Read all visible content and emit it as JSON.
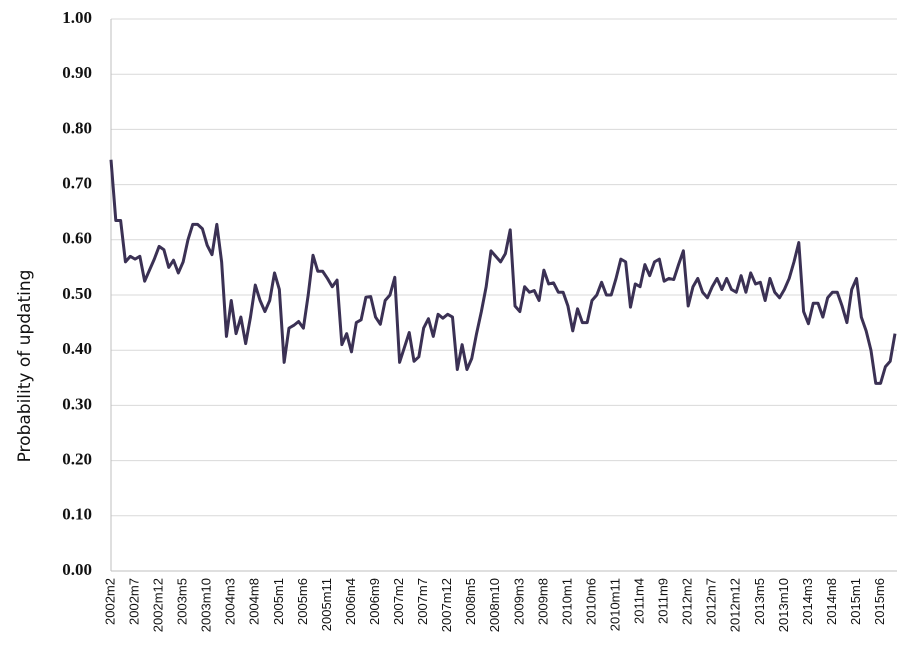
{
  "chart_data": {
    "type": "line",
    "y_label": "Probability of updating",
    "categories": [
      "2002m2",
      null,
      null,
      null,
      null,
      "2002m7",
      null,
      null,
      null,
      null,
      "2002m12",
      null,
      null,
      null,
      null,
      "2003m5",
      null,
      null,
      null,
      null,
      "2003m10",
      null,
      null,
      null,
      null,
      "2004m3",
      null,
      null,
      null,
      null,
      "2004m8",
      null,
      null,
      null,
      null,
      "2005m1",
      null,
      null,
      null,
      null,
      "2005m6",
      null,
      null,
      null,
      null,
      "2005m11",
      null,
      null,
      null,
      null,
      "2006m4",
      null,
      null,
      null,
      null,
      "2006m9",
      null,
      null,
      null,
      null,
      "2007m2",
      null,
      null,
      null,
      null,
      "2007m7",
      null,
      null,
      null,
      null,
      "2007m12",
      null,
      null,
      null,
      null,
      "2008m5",
      null,
      null,
      null,
      null,
      "2008m10",
      null,
      null,
      null,
      null,
      "2009m3",
      null,
      null,
      null,
      null,
      "2009m8",
      null,
      null,
      null,
      null,
      "2010m1",
      null,
      null,
      null,
      null,
      "2010m6",
      null,
      null,
      null,
      null,
      "2010m11",
      null,
      null,
      null,
      null,
      "2011m4",
      null,
      null,
      null,
      null,
      "2011m9",
      null,
      null,
      null,
      null,
      "2012m2",
      null,
      null,
      null,
      null,
      "2012m7",
      null,
      null,
      null,
      null,
      "2012m12",
      null,
      null,
      null,
      null,
      "2013m5",
      null,
      null,
      null,
      null,
      "2013m10",
      null,
      null,
      null,
      null,
      "2014m3",
      null,
      null,
      null,
      null,
      "2014m8",
      null,
      null,
      null,
      null,
      "2015m1",
      null,
      null,
      null,
      null,
      "2015m6",
      null,
      null,
      null
    ],
    "series": [
      {
        "color": "#3b3154",
        "values": [
          0.745,
          0.635,
          0.635,
          0.56,
          0.57,
          0.565,
          0.57,
          0.525,
          0.545,
          0.565,
          0.588,
          0.582,
          0.55,
          0.563,
          0.54,
          0.56,
          0.6,
          0.628,
          0.628,
          0.62,
          0.59,
          0.573,
          0.628,
          0.56,
          0.425,
          0.49,
          0.43,
          0.46,
          0.412,
          0.46,
          0.518,
          0.49,
          0.47,
          0.49,
          0.54,
          0.51,
          0.378,
          0.44,
          0.445,
          0.452,
          0.44,
          0.5,
          0.572,
          0.543,
          0.543,
          0.53,
          0.515,
          0.527,
          0.41,
          0.43,
          0.397,
          0.45,
          0.455,
          0.496,
          0.497,
          0.46,
          0.447,
          0.49,
          0.5,
          0.532,
          0.378,
          0.405,
          0.432,
          0.38,
          0.388,
          0.44,
          0.457,
          0.425,
          0.465,
          0.458,
          0.465,
          0.46,
          0.365,
          0.41,
          0.365,
          0.385,
          0.43,
          0.47,
          0.515,
          0.58,
          0.57,
          0.56,
          0.575,
          0.618,
          0.48,
          0.47,
          0.515,
          0.505,
          0.508,
          0.49,
          0.545,
          0.52,
          0.522,
          0.505,
          0.505,
          0.48,
          0.435,
          0.475,
          0.45,
          0.45,
          0.49,
          0.5,
          0.523,
          0.5,
          0.5,
          0.53,
          0.565,
          0.56,
          0.478,
          0.52,
          0.515,
          0.555,
          0.535,
          0.56,
          0.565,
          0.525,
          0.53,
          0.528,
          0.555,
          0.58,
          0.48,
          0.515,
          0.53,
          0.505,
          0.495,
          0.515,
          0.53,
          0.51,
          0.53,
          0.51,
          0.505,
          0.535,
          0.505,
          0.54,
          0.52,
          0.523,
          0.49,
          0.53,
          0.505,
          0.495,
          0.51,
          0.53,
          0.56,
          0.595,
          0.47,
          0.448,
          0.485,
          0.485,
          0.46,
          0.495,
          0.505,
          0.505,
          0.48,
          0.45,
          0.51,
          0.53,
          0.46,
          0.435,
          0.4,
          0.34,
          0.34,
          0.37,
          0.38,
          0.43
        ]
      }
    ],
    "ylim": [
      0,
      1
    ],
    "yticks": [
      {
        "value": 0,
        "label": "0.00"
      },
      {
        "value": 0.1,
        "label": "0.10"
      },
      {
        "value": 0.2,
        "label": "0.20"
      },
      {
        "value": 0.3,
        "label": "0.30"
      },
      {
        "value": 0.4,
        "label": "0.40"
      },
      {
        "value": 0.5,
        "label": "0.50"
      },
      {
        "value": 0.6,
        "label": "0.60"
      },
      {
        "value": 0.7,
        "label": "0.70"
      },
      {
        "value": 0.8,
        "label": "0.80"
      },
      {
        "value": 0.9,
        "label": "0.90"
      },
      {
        "value": 1,
        "label": "1.00"
      }
    ],
    "grid": true
  }
}
